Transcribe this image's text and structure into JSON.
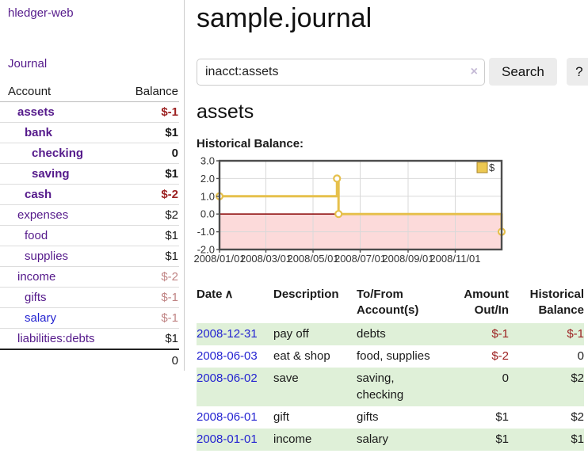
{
  "app_title": "hledger-web",
  "sidebar": {
    "nav_journal": "Journal",
    "headers": {
      "account": "Account",
      "balance": "Balance"
    },
    "accounts": [
      {
        "account": "assets",
        "balance": "$-1",
        "acct_class": "d1 bold",
        "amt_class": "bold neg"
      },
      {
        "account": "bank",
        "balance": "$1",
        "acct_class": "d2 bold",
        "amt_class": "bold"
      },
      {
        "account": "checking",
        "balance": "0",
        "acct_class": "d3 bold",
        "amt_class": "bold"
      },
      {
        "account": "saving",
        "balance": "$1",
        "acct_class": "d3 bold",
        "amt_class": "bold"
      },
      {
        "account": "cash",
        "balance": "$-2",
        "acct_class": "d2 bold",
        "amt_class": "bold neg"
      },
      {
        "account": "expenses",
        "balance": "$2",
        "acct_class": "d1",
        "amt_class": ""
      },
      {
        "account": "food",
        "balance": "$1",
        "acct_class": "d2",
        "amt_class": ""
      },
      {
        "account": "supplies",
        "balance": "$1",
        "acct_class": "d2",
        "amt_class": ""
      },
      {
        "account": "income",
        "balance": "$-2",
        "acct_class": "d1",
        "amt_class": "muted"
      },
      {
        "account": "gifts",
        "balance": "$-1",
        "acct_class": "d2",
        "amt_class": "muted"
      },
      {
        "account": "salary",
        "balance": "$-1",
        "acct_class": "d2 blue",
        "amt_class": "muted"
      },
      {
        "account": "liabilities:debts",
        "balance": "$1",
        "acct_class": "d1",
        "amt_class": ""
      }
    ],
    "total": "0"
  },
  "main": {
    "title": "sample.journal",
    "search": {
      "value": "inacct:assets",
      "clear_icon": "×",
      "button_label": "Search",
      "help_label": "?"
    },
    "account_heading": "assets",
    "chart_label": "Historical Balance:"
  },
  "chart_data": {
    "type": "line",
    "title": "Historical Balance",
    "step": true,
    "legend": {
      "label": "$",
      "position": "top-right"
    },
    "ylim": [
      -2,
      3
    ],
    "yticks": [
      "3.0",
      "2.0",
      "1.0",
      "0.0",
      "-1.0",
      "-2.0"
    ],
    "xticks": [
      "2008/01/01",
      "2008/03/01",
      "2008/05/01",
      "2008/07/01",
      "2008/09/01",
      "2008/11/01"
    ],
    "x_start": "2008-01-01",
    "x_span_days": 365,
    "series": [
      {
        "name": "$",
        "points": [
          {
            "date": "2008-01-01",
            "value": 1
          },
          {
            "date": "2008-06-01",
            "value": 2
          },
          {
            "date": "2008-06-03",
            "value": 0
          },
          {
            "date": "2008-12-31",
            "value": -1
          }
        ]
      }
    ],
    "colors": {
      "line": "#e6c04c",
      "marker_fill": "#ffffff",
      "negative_fill": "#fcdada",
      "zero_line": "#8f1010",
      "grid": "#d9d9d9",
      "border": "#4d4d4d",
      "legend_fill": "#ecc851",
      "legend_border": "#a8862c",
      "tick_text": "#333333"
    }
  },
  "register": {
    "headers": [
      {
        "label": "Date",
        "sort_indicator": "∧"
      },
      {
        "label": "Description"
      },
      {
        "label": "To/From\nAccount(s)"
      },
      {
        "label": "Amount\nOut/In"
      },
      {
        "label": "Historical\nBalance"
      }
    ],
    "rows": [
      {
        "date": "2008-12-31",
        "description": "pay off",
        "accounts": "debts",
        "amount": "$-1",
        "amount_class": "neg",
        "balance": "$-1",
        "balance_class": "neg"
      },
      {
        "date": "2008-06-03",
        "description": "eat & shop",
        "accounts": "food, supplies",
        "amount": "$-2",
        "amount_class": "neg",
        "balance": "0",
        "balance_class": ""
      },
      {
        "date": "2008-06-02",
        "description": "save",
        "accounts": "saving,\nchecking",
        "amount": "0",
        "amount_class": "",
        "balance": "$2",
        "balance_class": ""
      },
      {
        "date": "2008-06-01",
        "description": "gift",
        "accounts": "gifts",
        "amount": "$1",
        "amount_class": "",
        "balance": "$2",
        "balance_class": ""
      },
      {
        "date": "2008-01-01",
        "description": "income",
        "accounts": "salary",
        "amount": "$1",
        "amount_class": "",
        "balance": "$1",
        "balance_class": ""
      }
    ]
  }
}
